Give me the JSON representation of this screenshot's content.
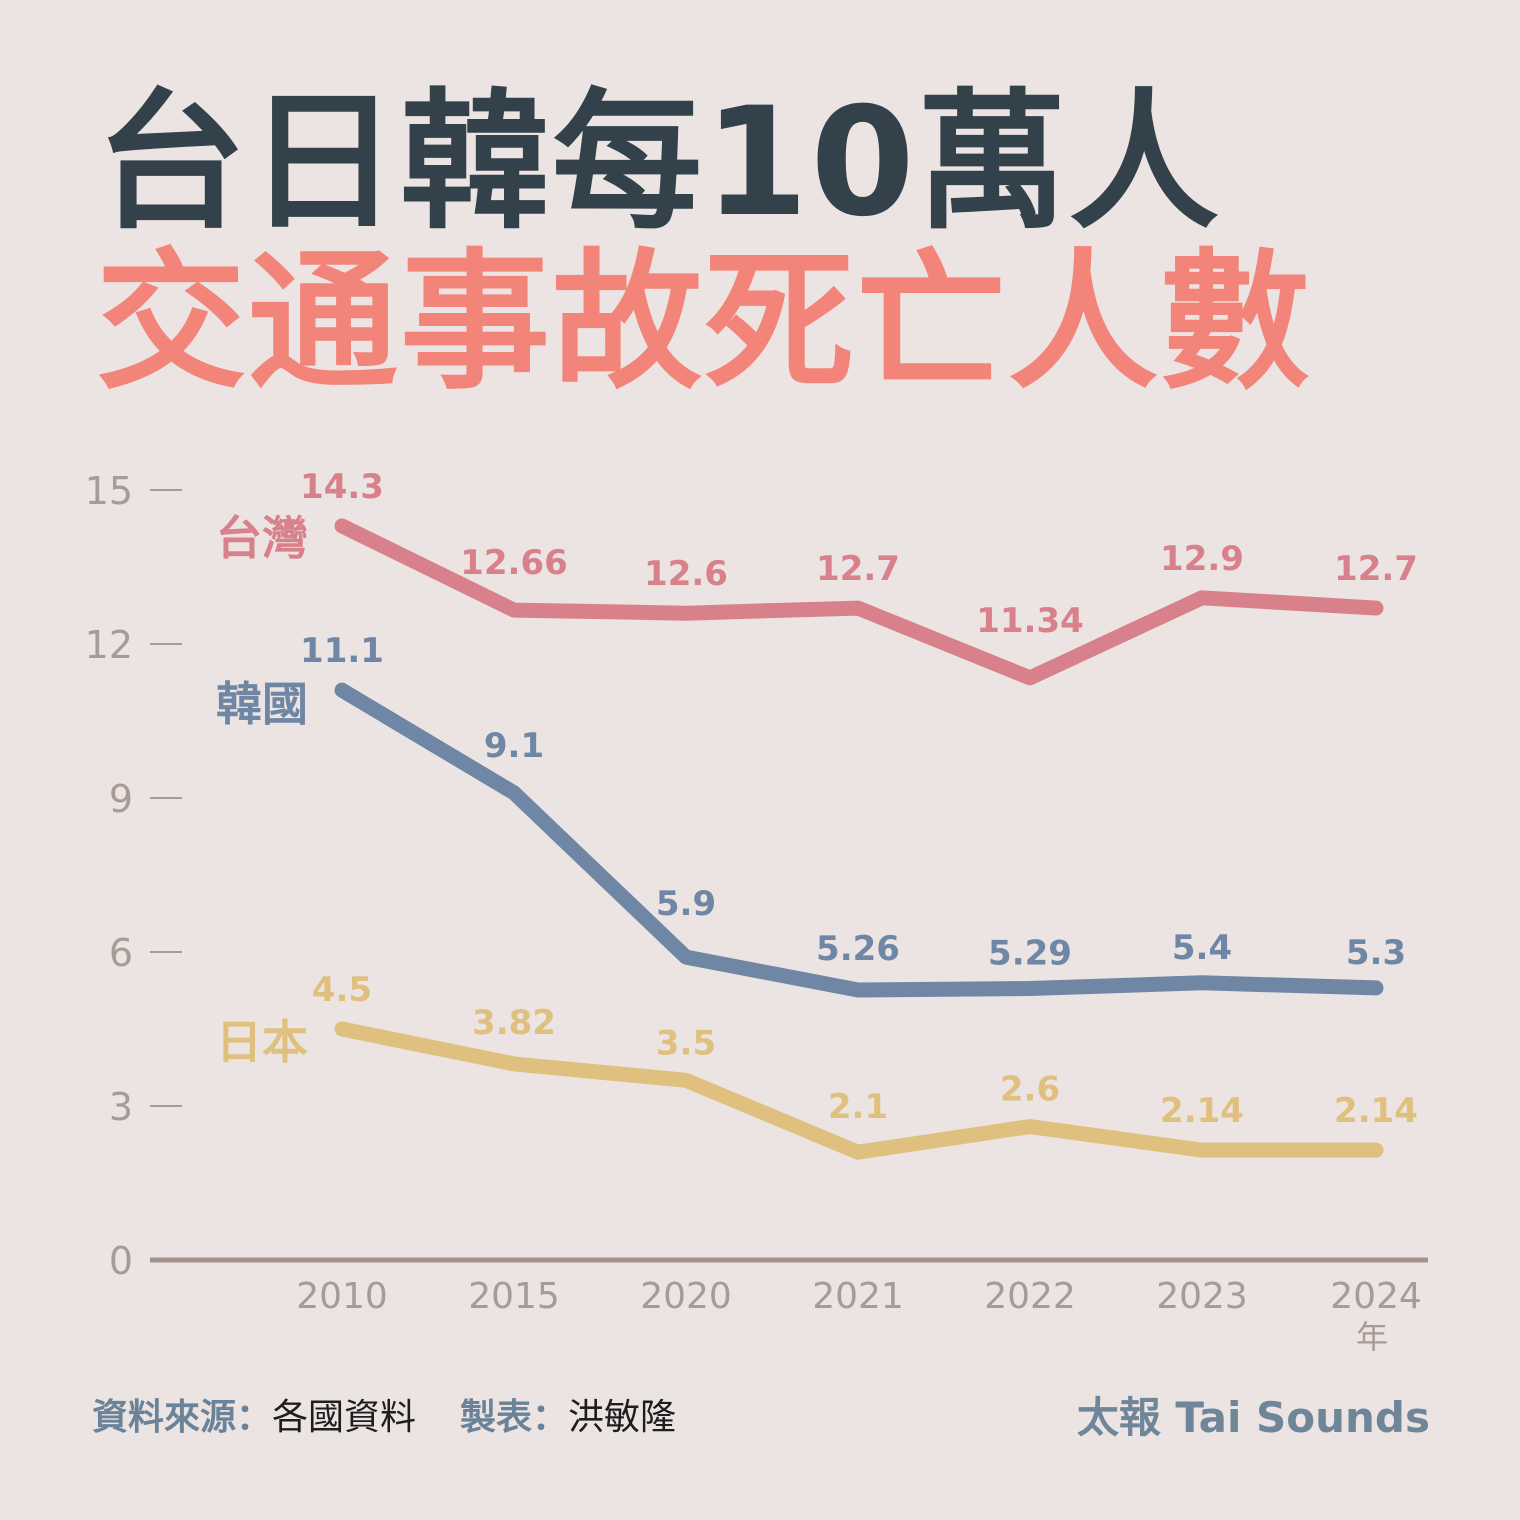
{
  "title": {
    "line1": "台日韓每10萬人",
    "line2": "交通事故死亡人數"
  },
  "chart_data": {
    "type": "line",
    "x": [
      "2010",
      "2015",
      "2020",
      "2021",
      "2022",
      "2023",
      "2024"
    ],
    "x_unit": "年",
    "ylim": [
      0,
      15
    ],
    "yticks": [
      0,
      3,
      6,
      9,
      12,
      15
    ],
    "legend": "inline-left",
    "grid": false,
    "series": [
      {
        "name": "台灣",
        "color": "#d9818a",
        "values": [
          14.3,
          12.66,
          12.6,
          12.7,
          11.34,
          12.9,
          12.7
        ],
        "labels": [
          "14.3",
          "12.66",
          "12.6",
          "12.7",
          "11.34",
          "12.9",
          "12.7"
        ]
      },
      {
        "name": "韓國",
        "color": "#6f87a4",
        "values": [
          11.1,
          9.1,
          5.9,
          5.26,
          5.29,
          5.4,
          5.3
        ],
        "labels": [
          "11.1",
          "9.1",
          "5.9",
          "5.26",
          "5.29",
          "5.4",
          "5.3"
        ]
      },
      {
        "name": "日本",
        "color": "#dfc07f",
        "values": [
          4.5,
          3.82,
          3.5,
          2.1,
          2.6,
          2.14,
          2.14
        ],
        "labels": [
          "4.5",
          "3.82",
          "3.5",
          "2.1",
          "2.6",
          "2.14",
          "2.14"
        ]
      }
    ]
  },
  "footer": {
    "source_label": "資料來源：",
    "source_value": "各國資料",
    "author_label": "製表：",
    "author_value": "洪敏隆",
    "brand": "太報 Tai Sounds"
  },
  "colors": {
    "background": "#ebe4e3",
    "title_dark": "#33414b",
    "title_accent": "#f3847a",
    "axis": "#a89a95"
  }
}
